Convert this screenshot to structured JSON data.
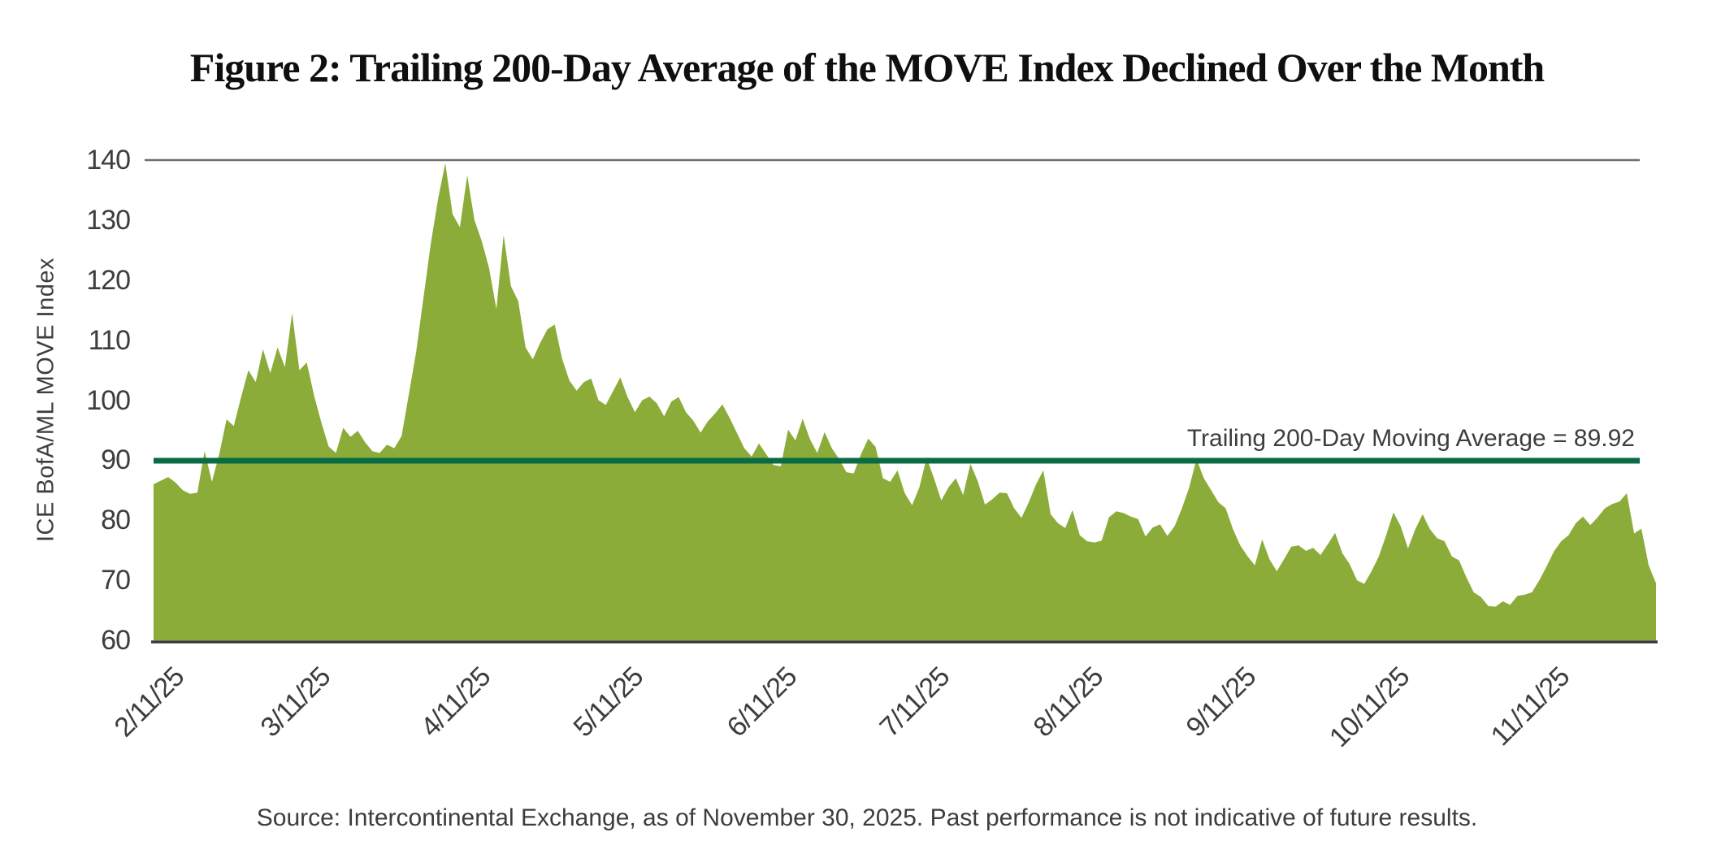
{
  "title": "Figure 2: Trailing 200-Day Average of the MOVE Index Declined Over the Month",
  "y_axis_label": "ICE BofA/ML MOVE Index",
  "annotation": "Trailing 200-Day Moving Average = 89.92",
  "source": "Source: Intercontinental Exchange, as of November 30, 2025. Past performance is not indicative of future results.",
  "colors": {
    "background": "#FFFFFF",
    "area": "#8BAC39",
    "ma_line": "#0A6B44",
    "baseline": "#383838",
    "gridline": "#6E6E6E",
    "text": "#3D3D3D",
    "title": "#0F0F0F"
  },
  "chart_data": {
    "type": "area",
    "title": "Figure 2: Trailing 200-Day Average of the MOVE Index Declined Over the Month",
    "xlabel": "",
    "ylabel": "ICE BofA/ML MOVE Index",
    "ylim": [
      60,
      140
    ],
    "y_ticks": [
      60,
      70,
      80,
      90,
      100,
      110,
      120,
      130,
      140
    ],
    "x_tick_labels": [
      "2/11/25",
      "3/11/25",
      "4/11/25",
      "5/11/25",
      "6/11/25",
      "7/11/25",
      "8/11/25",
      "9/11/25",
      "10/11/25",
      "11/11/25"
    ],
    "x_tick_day_indices": [
      0,
      20,
      42,
      63,
      84,
      105,
      126,
      147,
      168,
      190
    ],
    "grid": "top-gridline-only",
    "legend_position": "none",
    "moving_average": {
      "label": "Trailing 200-Day Moving Average = 89.92",
      "value": 89.92
    },
    "series": [
      {
        "name": "ICE BofA/ML MOVE Index",
        "start_date": "2/11/25",
        "end_date": "11/28/25",
        "values": [
          86,
          86.6,
          87.2,
          86.3,
          85,
          84.4,
          84.6,
          91.5,
          86.4,
          91,
          96.8,
          95.7,
          100.5,
          105,
          103,
          108.5,
          104.5,
          108.8,
          105.5,
          114.5,
          105,
          106.3,
          100.8,
          96.3,
          92.3,
          91.2,
          95.4,
          93.9,
          94.9,
          93,
          91.5,
          91.2,
          92.6,
          92,
          94,
          101,
          108,
          117,
          126,
          133.5,
          139.5,
          131,
          128.8,
          137.5,
          130,
          126.5,
          122,
          115.2,
          127.5,
          119,
          116.5,
          108.8,
          106.8,
          109.5,
          111.8,
          112.6,
          107,
          103.3,
          101.6,
          103,
          103.6,
          100,
          99.2,
          101.5,
          103.8,
          100.5,
          98,
          100,
          100.6,
          99.5,
          97.3,
          99.8,
          100.5,
          98,
          96.6,
          94.6,
          96.5,
          97.8,
          99.3,
          97,
          94.5,
          92,
          90.6,
          92.8,
          91,
          89.2,
          89,
          95.1,
          93.3,
          96.9,
          93.5,
          91.2,
          94.7,
          92,
          90.2,
          88,
          87.8,
          91,
          93.6,
          92.2,
          87,
          86.4,
          88.3,
          84.5,
          82.5,
          85.5,
          90.4,
          87,
          83.3,
          85.5,
          87,
          84.2,
          89.4,
          86.5,
          82.6,
          83.5,
          84.6,
          84.5,
          82,
          80.4,
          83,
          86,
          88.3,
          81,
          79.5,
          78.7,
          81.7,
          77.5,
          76.5,
          76.3,
          76.6,
          80.5,
          81.5,
          81.2,
          80.6,
          80.2,
          77.3,
          78.8,
          79.3,
          77.4,
          79,
          82,
          85.5,
          90.2,
          87,
          85,
          83,
          82,
          78.5,
          75.8,
          74,
          72.5,
          76.8,
          73.5,
          71.5,
          73.5,
          75.6,
          75.8,
          74.9,
          75.4,
          74.2,
          76,
          77.9,
          74.5,
          72.7,
          70,
          69.4,
          71.5,
          74,
          77.5,
          81.3,
          79,
          75.3,
          78.5,
          81,
          78.5,
          77,
          76.5,
          74,
          73.3,
          70.5,
          68,
          67.2,
          65.7,
          65.6,
          66.5,
          65.9,
          67.4,
          67.6,
          68,
          70,
          72.3,
          74.8,
          76.5,
          77.5,
          79.5,
          80.6,
          79.2,
          80.5,
          82,
          82.7,
          83.1,
          84.5,
          77.8,
          78.6,
          72.5,
          69.5
        ]
      }
    ]
  }
}
